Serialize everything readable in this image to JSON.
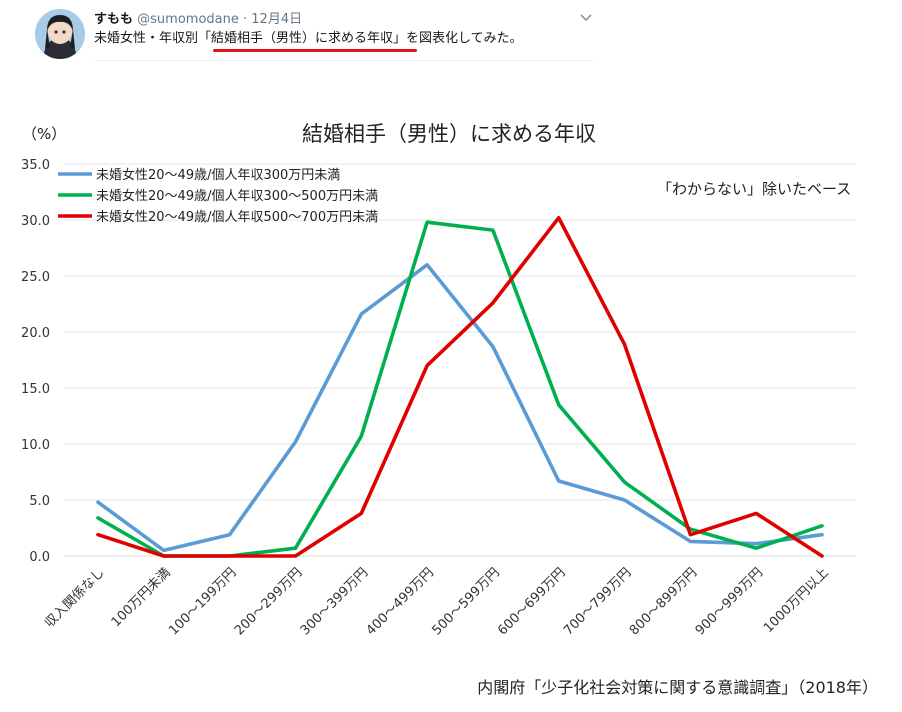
{
  "tweet": {
    "user_name": "すもも",
    "handle": "@sumomodane",
    "separator": "·",
    "date": "12月4日",
    "text_before": "未婚女性・年収別",
    "text_highlight": "「結婚相手（男性）に求める年収」",
    "text_after": "を図表化してみた。",
    "highlight_color": "#e0151b"
  },
  "icons": {
    "avatar": "user-avatar",
    "menu": "chevron-down-icon"
  },
  "chart_data": {
    "type": "line",
    "title": "結婚相手（男性）に求める年収",
    "y_unit_label": "（%）",
    "note": "「わからない」除いたベース",
    "source": "内閣府「少子化社会対策に関する意識調査」（2018年）",
    "categories": [
      "収入関係なし",
      "100万円未満",
      "100～199万円",
      "200～299万円",
      "300～399万円",
      "400～499万円",
      "500～599万円",
      "600～699万円",
      "700～799万円",
      "800～899万円",
      "900～999万円",
      "1000万円以上"
    ],
    "ylim": [
      0,
      35
    ],
    "yticks": [
      "0.0",
      "5.0",
      "10.0",
      "15.0",
      "20.0",
      "25.0",
      "30.0",
      "35.0"
    ],
    "grid": true,
    "legend_position": "top-left",
    "series": [
      {
        "name": "未婚女性20～49歳/個人年収300万円未満",
        "color": "#5b9bd5",
        "values": [
          4.8,
          0.5,
          1.9,
          10.2,
          21.6,
          26.0,
          18.7,
          6.7,
          5.0,
          1.3,
          1.1,
          1.9
        ]
      },
      {
        "name": "未婚女性20～49歳/個人年収300～500万円未満",
        "color": "#00b050",
        "values": [
          3.4,
          0.0,
          0.0,
          0.7,
          10.7,
          29.8,
          29.1,
          13.5,
          6.6,
          2.4,
          0.7,
          2.7
        ]
      },
      {
        "name": "未婚女性20～49歳/個人年収500～700万円未満",
        "color": "#e00000",
        "values": [
          1.9,
          0.0,
          0.0,
          0.0,
          3.8,
          17.0,
          22.6,
          30.2,
          18.9,
          1.9,
          3.8,
          0.0
        ]
      }
    ]
  }
}
